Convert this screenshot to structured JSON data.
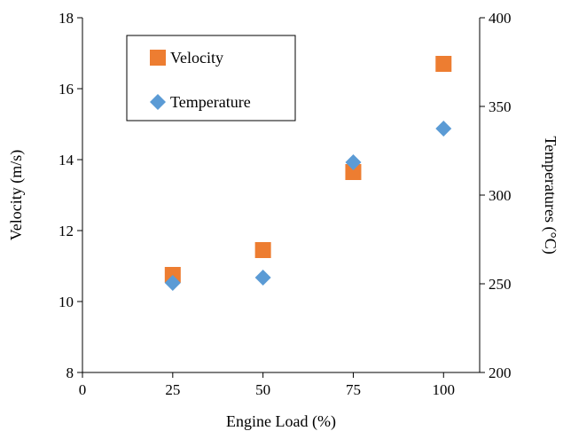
{
  "chart_data": {
    "type": "scatter",
    "xlabel": "Engine Load (%)",
    "ylabel_left": "Velocity (m/s)",
    "ylabel_right": "Temperatures (°C)",
    "x_ticks": [
      0,
      25,
      50,
      75,
      100
    ],
    "y_left_ticks": [
      8,
      10,
      12,
      14,
      16,
      18
    ],
    "y_right_ticks": [
      200,
      250,
      300,
      350,
      400
    ],
    "xlim": [
      0,
      110
    ],
    "ylim_left": [
      8,
      18
    ],
    "ylim_right": [
      200,
      400
    ],
    "legend_position": "top-left",
    "series": [
      {
        "name": "Velocity",
        "axis": "left",
        "marker": "square",
        "color": "#ED7D31",
        "x": [
          25,
          50,
          75,
          100
        ],
        "y": [
          10.75,
          11.45,
          13.65,
          16.7
        ]
      },
      {
        "name": "Temperature",
        "axis": "right",
        "marker": "diamond",
        "color": "#5B9BD5",
        "x": [
          25,
          50,
          75,
          100
        ],
        "y": [
          250.5,
          253.5,
          318.5,
          337.5
        ]
      }
    ]
  }
}
